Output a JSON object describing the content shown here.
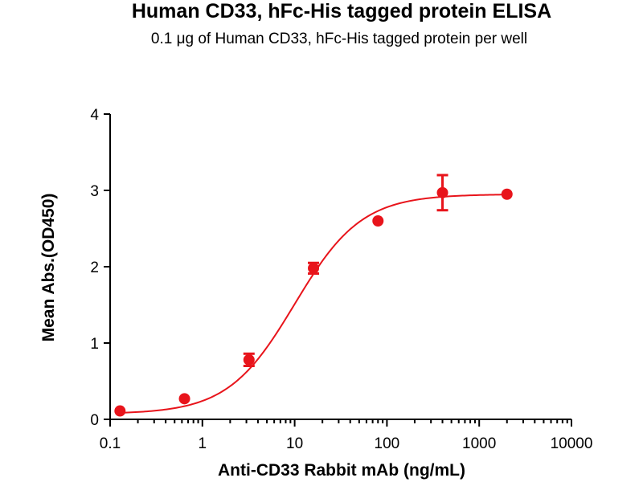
{
  "chart_data": {
    "type": "scatter",
    "title": "Human CD33, hFc-His tagged protein ELISA",
    "subtitle": "0.1 μg of Human CD33, hFc-His tagged protein per well",
    "xlabel": "Anti-CD33 Rabbit mAb (ng/mL)",
    "ylabel": "Mean Abs.(OD450)",
    "x_scale": "log",
    "xlim": [
      0.1,
      10000
    ],
    "ylim": [
      0,
      4
    ],
    "x_ticks": [
      "0.1",
      "1",
      "10",
      "100",
      "1000",
      "10000"
    ],
    "y_ticks": [
      "0",
      "1",
      "2",
      "3",
      "4"
    ],
    "grid": false,
    "color": "#e8141b",
    "points": [
      {
        "x": 0.128,
        "y": 0.11,
        "err": 0.0
      },
      {
        "x": 0.64,
        "y": 0.27,
        "err": 0.0
      },
      {
        "x": 3.2,
        "y": 0.78,
        "err": 0.08
      },
      {
        "x": 16,
        "y": 1.98,
        "err": 0.07
      },
      {
        "x": 80,
        "y": 2.6,
        "err": 0.0
      },
      {
        "x": 400,
        "y": 2.97,
        "err": 0.23
      },
      {
        "x": 2000,
        "y": 2.95,
        "err": 0.0
      }
    ],
    "fit_curve": {
      "model": "4PL",
      "bottom": 0.07,
      "top": 2.95,
      "ec50": 10,
      "hill": 1.2
    }
  }
}
